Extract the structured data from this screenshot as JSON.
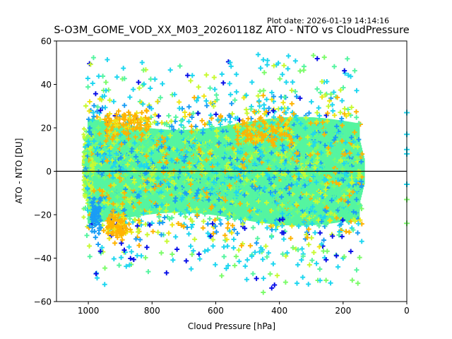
{
  "chart_data": {
    "type": "scatter",
    "title": "S-O3M_GOME_VOD_XX_M03_20260118Z ATO - NTO vs CloudPressure",
    "annotation": "Plot date: 2026-01-19 14:14:16",
    "xlabel": "Cloud Pressure [hPa]",
    "ylabel": "ATO - NTO [DU]",
    "xlim": [
      1100,
      0
    ],
    "ylim": [
      -60,
      60
    ],
    "x_reversed": true,
    "xticks": [
      1000,
      800,
      600,
      400,
      200,
      0
    ],
    "yticks": [
      60,
      40,
      20,
      0,
      -20,
      -40,
      -60
    ],
    "ytick_labels": [
      "60",
      "40",
      "20",
      "0",
      "−20",
      "−40",
      "−60"
    ],
    "reference_line": {
      "y": 0,
      "color": "#000000"
    },
    "marker": "+",
    "grid": false,
    "legend": "none",
    "colors": {
      "core": "#55f5a0",
      "cyan": "#1ed6f0",
      "blue_light": "#1a9df5",
      "blue_dark": "#0a10e8",
      "yellow_green": "#c8fa32",
      "yellow": "#eee514",
      "orange": "#ffb300",
      "green": "#7cfc6a"
    },
    "distribution": {
      "description": "Dense cloud of points spanning ~1010 to ~130 hPa; core centered near 0 DU spanning roughly -25 to +25 DU, sparse outliers out to about ±55 DU; orange points concentrated near +20 DU at 950-800 hPa and 550-350 hPa, and near -25 DU at 950-880 hPa; a few points at 0 hPa along the right axis",
      "x_range": [
        130,
        1010
      ],
      "core_y_range": [
        -25,
        25
      ],
      "outlier_y_range": [
        -58,
        57
      ],
      "edge_points_x0_y": [
        27,
        17,
        8,
        -6,
        -13,
        -24,
        10
      ]
    }
  }
}
